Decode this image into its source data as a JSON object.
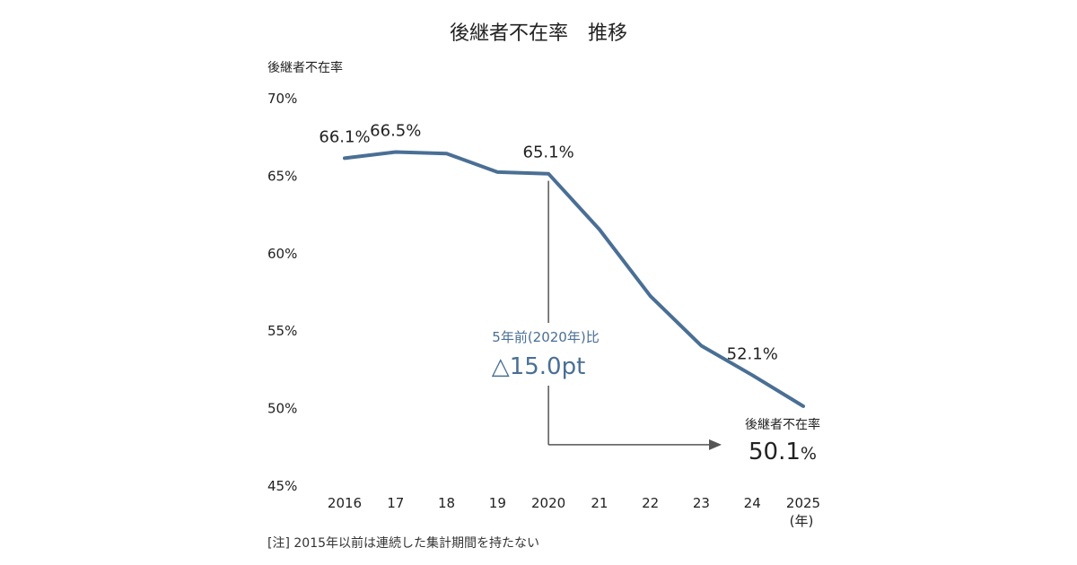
{
  "chart_data": {
    "type": "line",
    "title": "後継者不在率　推移",
    "ylabel": "後継者不在率",
    "x_unit_label": "(年)",
    "categories": [
      "2016",
      "17",
      "18",
      "19",
      "2020",
      "21",
      "22",
      "23",
      "24",
      "2025"
    ],
    "series": [
      {
        "values": [
          66.1,
          66.5,
          66.4,
          65.2,
          65.1,
          61.5,
          57.2,
          54.0,
          52.1,
          50.1
        ],
        "color": "#4a6f95"
      }
    ],
    "data_labels": [
      {
        "index": 0,
        "text": "66.1%"
      },
      {
        "index": 1,
        "text": "66.5%"
      },
      {
        "index": 4,
        "text": "65.1%"
      },
      {
        "index": 8,
        "text": "52.1%"
      }
    ],
    "ylim": [
      45,
      70
    ],
    "yticks": [
      "70%",
      "65%",
      "60%",
      "55%",
      "50%",
      "45%"
    ],
    "ytick_values": [
      70,
      65,
      60,
      55,
      50,
      45
    ],
    "grid": false,
    "legend": "none",
    "annotation": {
      "subtitle": "5年前(2020年)比",
      "value": "△15.0pt",
      "from_index": 4
    },
    "end_callout": {
      "label": "後継者不在率",
      "value": "50.1",
      "unit": "%"
    },
    "note": "[注] 2015年以前は連続した集計期間を持たない"
  }
}
